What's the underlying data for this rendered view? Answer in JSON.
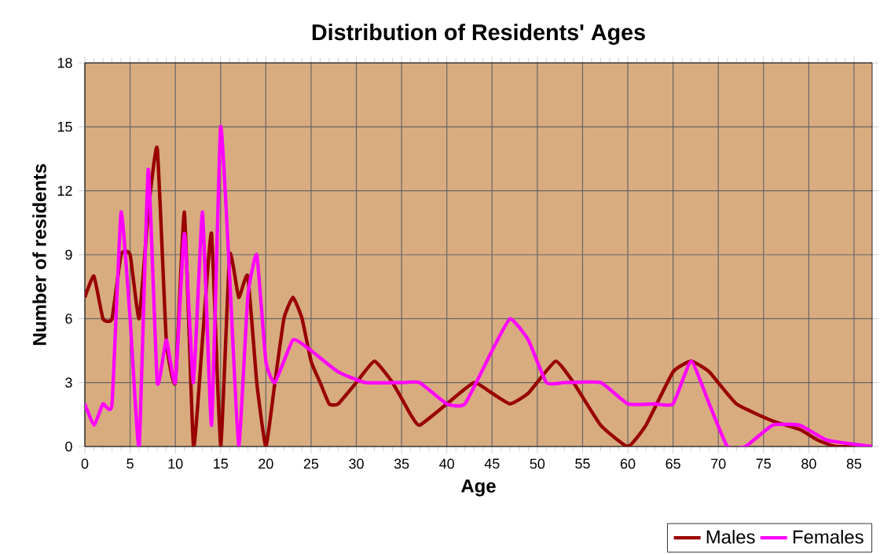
{
  "chart_data": {
    "type": "line",
    "title": "Distribution of Residents' Ages",
    "xlabel": "Age",
    "ylabel": "Number of residents",
    "xlim": [
      0,
      87
    ],
    "xticks": [
      0,
      5,
      10,
      15,
      20,
      25,
      30,
      35,
      40,
      45,
      50,
      55,
      60,
      65,
      70,
      75,
      80,
      85
    ],
    "ylim": [
      0,
      18
    ],
    "yticks": [
      0,
      3,
      6,
      9,
      12,
      15,
      18
    ],
    "grid": true,
    "legend": "bottom right",
    "marker": "none",
    "line_style": "solid",
    "series": [
      {
        "name": "Males",
        "color": "#990000",
        "x": [
          0,
          1,
          2,
          3,
          4,
          5,
          6,
          7,
          8,
          9,
          10,
          11,
          12,
          13,
          14,
          15,
          16,
          17,
          18,
          19,
          20,
          21,
          22,
          23,
          24,
          25,
          26,
          27,
          28,
          30,
          32,
          34,
          36,
          37,
          40,
          43,
          45,
          47,
          49,
          52,
          54,
          57,
          60,
          62,
          65,
          67,
          69,
          72,
          76,
          79,
          81,
          83,
          87
        ],
        "values": [
          7,
          8,
          6,
          6,
          9,
          9,
          6,
          11,
          14,
          5,
          3,
          11,
          0,
          5,
          10,
          0,
          9,
          7,
          8,
          3,
          0,
          3,
          6,
          7,
          6,
          4,
          3,
          2,
          2,
          3,
          4,
          3,
          1.5,
          1,
          2,
          3,
          2.5,
          2,
          2.5,
          4,
          3,
          1,
          0,
          1,
          3.5,
          4,
          3.5,
          2,
          1.2,
          0.8,
          0.3,
          0,
          0
        ]
      },
      {
        "name": "Females",
        "color": "#ff00ff",
        "x": [
          0,
          1,
          2,
          3,
          4,
          5,
          6,
          7,
          8,
          9,
          10,
          11,
          12,
          13,
          14,
          15,
          16,
          17,
          18,
          19,
          20,
          21,
          23,
          25,
          28,
          31,
          35,
          37,
          40,
          42,
          45,
          47,
          49,
          51,
          53,
          57,
          60,
          63,
          65,
          67,
          69,
          71,
          73,
          76,
          79,
          82,
          87
        ],
        "values": [
          2,
          1,
          2,
          2,
          11,
          6,
          0,
          13,
          3,
          5,
          3,
          10,
          3,
          11,
          1,
          15,
          8,
          0,
          7,
          9,
          4,
          3,
          5,
          4.5,
          3.5,
          3,
          3,
          3,
          2,
          2,
          4.5,
          6,
          5,
          3,
          3,
          3,
          2,
          2,
          2,
          4,
          2,
          0,
          0,
          1,
          1,
          0.3,
          0
        ]
      }
    ]
  }
}
